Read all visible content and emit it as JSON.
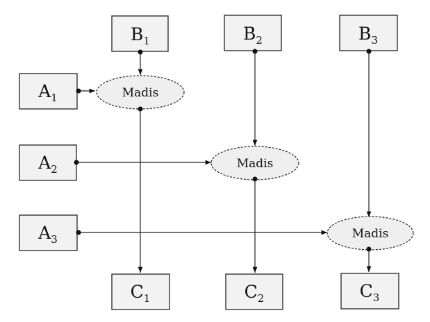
{
  "nodes": {
    "B1": {
      "main": "B",
      "sub": "1"
    },
    "B2": {
      "main": "B",
      "sub": "2"
    },
    "B3": {
      "main": "B",
      "sub": "3"
    },
    "A1": {
      "main": "A",
      "sub": "1"
    },
    "A2": {
      "main": "A",
      "sub": "2"
    },
    "A3": {
      "main": "A",
      "sub": "3"
    },
    "C1": {
      "main": "C",
      "sub": "1"
    },
    "C2": {
      "main": "C",
      "sub": "2"
    },
    "C3": {
      "main": "C",
      "sub": "3"
    },
    "M1": {
      "label": "Madis"
    },
    "M2": {
      "label": "Madis"
    },
    "M3": {
      "label": "Madis"
    }
  },
  "edges": [
    {
      "from": "B1",
      "to": "M1"
    },
    {
      "from": "A1",
      "to": "M1"
    },
    {
      "from": "M1",
      "to": "C1"
    },
    {
      "from": "B2",
      "to": "M2"
    },
    {
      "from": "A2",
      "to": "M2"
    },
    {
      "from": "M2",
      "to": "C2"
    },
    {
      "from": "B3",
      "to": "M3"
    },
    {
      "from": "A3",
      "to": "M3"
    },
    {
      "from": "M3",
      "to": "C3"
    }
  ]
}
